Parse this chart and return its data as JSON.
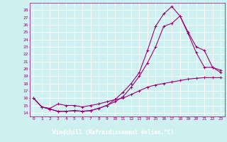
{
  "xlabel": "Windchill (Refroidissement éolien,°C)",
  "bg_color": "#cff0f0",
  "axis_bg_color": "#cce8e8",
  "grid_color": "#ffffff",
  "line_color": "#990077",
  "xlabel_bg": "#660066",
  "xlabel_fg": "#ffffff",
  "xlim": [
    -0.5,
    23.5
  ],
  "ylim": [
    13.5,
    29.0
  ],
  "yticks": [
    14,
    15,
    16,
    17,
    18,
    19,
    20,
    21,
    22,
    23,
    24,
    25,
    26,
    27,
    28
  ],
  "xticks": [
    0,
    1,
    2,
    3,
    4,
    5,
    6,
    7,
    8,
    9,
    10,
    11,
    12,
    13,
    14,
    15,
    16,
    17,
    18,
    19,
    20,
    21,
    22,
    23
  ],
  "series1_x": [
    0,
    1,
    2,
    3,
    4,
    5,
    6,
    7,
    8,
    9,
    10,
    11,
    12,
    13,
    14,
    15,
    16,
    17,
    18,
    19,
    20,
    21,
    22,
    23
  ],
  "series1_y": [
    16.0,
    14.8,
    14.6,
    15.2,
    15.0,
    15.0,
    14.8,
    15.0,
    15.2,
    15.5,
    15.8,
    16.0,
    16.5,
    17.0,
    17.5,
    17.8,
    18.0,
    18.2,
    18.4,
    18.6,
    18.7,
    18.8,
    18.8,
    18.8
  ],
  "series2_x": [
    0,
    1,
    2,
    3,
    4,
    5,
    6,
    7,
    8,
    9,
    10,
    11,
    12,
    13,
    14,
    15,
    16,
    17,
    18,
    19,
    20,
    21,
    22,
    23
  ],
  "series2_y": [
    16.0,
    14.8,
    14.5,
    14.2,
    14.2,
    14.3,
    14.2,
    14.3,
    14.6,
    15.0,
    15.5,
    16.2,
    17.5,
    19.0,
    20.8,
    23.0,
    25.8,
    26.2,
    27.2,
    24.8,
    22.2,
    20.2,
    20.2,
    19.8
  ],
  "series3_x": [
    0,
    1,
    2,
    3,
    4,
    5,
    6,
    7,
    8,
    9,
    10,
    11,
    12,
    13,
    14,
    15,
    16,
    17,
    18,
    19,
    20,
    21,
    22,
    23
  ],
  "series3_y": [
    16.0,
    14.8,
    14.5,
    14.2,
    14.2,
    14.3,
    14.2,
    14.3,
    14.6,
    15.0,
    15.8,
    16.8,
    18.0,
    19.5,
    22.5,
    25.8,
    27.5,
    28.5,
    27.2,
    25.0,
    23.0,
    22.5,
    20.2,
    19.5
  ]
}
